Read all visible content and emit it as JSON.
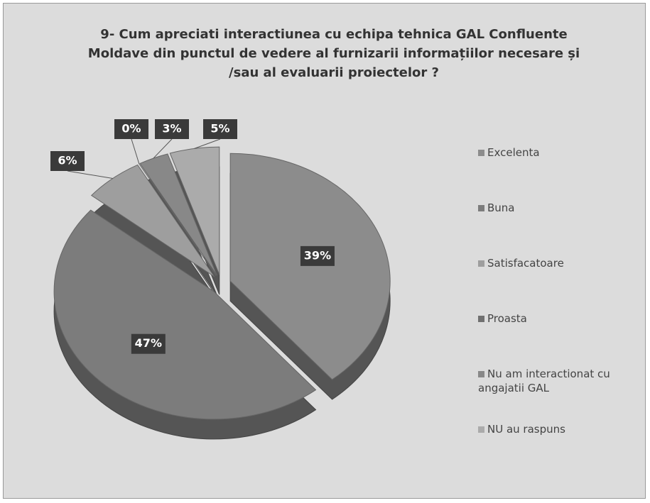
{
  "chart_data": {
    "type": "pie",
    "title": "9- Cum apreciati interactiunea cu echipa tehnica  GAL Confluente Moldave din punctul de vedere al  furnizarii informațiilor necesare și /sau al evaluarii proiectelor ?",
    "categories": [
      "Excelenta",
      "Buna",
      "Satisfacatoare",
      "Proasta",
      "Nu am interactionat cu angajatii GAL",
      "NU au raspuns"
    ],
    "values": [
      39,
      47,
      6,
      0,
      3,
      5
    ],
    "value_labels": [
      "39%",
      "47%",
      "6%",
      "0%",
      "3%",
      "5%"
    ],
    "colors": [
      "#8c8c8c",
      "#7c7c7c",
      "#9e9e9e",
      "#707070",
      "#888888",
      "#ababab"
    ],
    "legend": "right"
  }
}
